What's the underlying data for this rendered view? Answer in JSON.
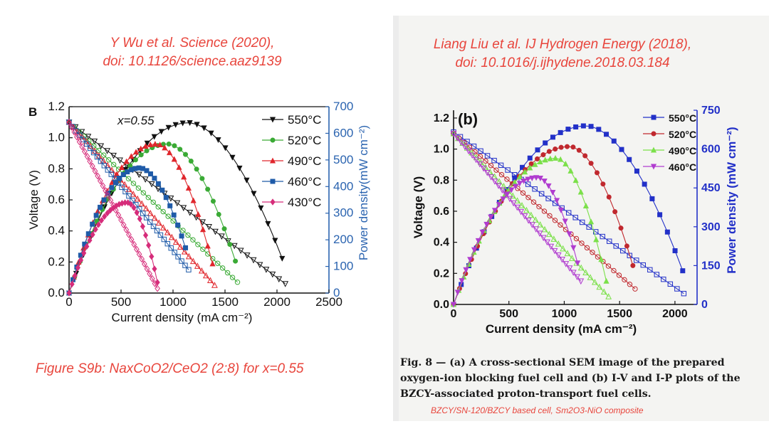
{
  "left": {
    "citation_line1": "Y Wu et al. Science (2020),",
    "citation_line2": "doi: 10.1126/science.aaz9139",
    "caption": "Figure S9b: NaxCoO2/CeO2 (2:8) for x=0.55"
  },
  "right": {
    "citation_line1": "Liang Liu et al. IJ Hydrogen Energy (2018),",
    "citation_line2": "doi: 10.1016/j.ijhydene.2018.03.184",
    "figure_caption_lines": [
      "Fig. 8 — (a) A cross-sectional SEM image of the prepared",
      "oxygen-ion blocking fuel cell and (b) I-V and I-P plots of the",
      "BZCY-associated proton-transport fuel cells."
    ],
    "sub_caption": "BZCY/SN-120/BZCY based cell, Sm2O3-NiO composite"
  },
  "chart_data": [
    {
      "type": "line",
      "panel_label": "B",
      "annotation": "x=0.55",
      "xlabel": "Current density (mA cm⁻²)",
      "ylabel": "Voltage (V)",
      "y2label": "Power density(mW cm⁻²)",
      "xlim": [
        0,
        2500
      ],
      "ylim": [
        0,
        1.2
      ],
      "y2lim": [
        0,
        700
      ],
      "xticks": [
        0,
        500,
        1000,
        1500,
        2000,
        2500
      ],
      "yticks": [
        0.0,
        0.2,
        0.4,
        0.6,
        0.8,
        1.0,
        1.2
      ],
      "y2ticks": [
        0,
        100,
        200,
        300,
        400,
        500,
        600,
        700
      ],
      "xtick_labels": [
        "0",
        "500",
        "1000",
        "1500",
        "2000",
        "2500"
      ],
      "ytick_labels": [
        "0.0",
        "0.2",
        "0.4",
        "0.6",
        "0.8",
        "1.0",
        "1.2"
      ],
      "y2tick_labels": [
        "0",
        "100",
        "200",
        "300",
        "400",
        "500",
        "600",
        "700"
      ],
      "legend_position": "top-right",
      "series": [
        {
          "name": "550°C",
          "color": "#111111",
          "marker": "triangle-down",
          "iv_x_max": 2080,
          "ocv": 1.1,
          "v_end": 0.06,
          "ip_x_max": 2050,
          "p_peak": 640,
          "p_peak_x": 1150,
          "p_end": 130
        },
        {
          "name": "520°C",
          "color": "#3aaa35",
          "marker": "circle",
          "iv_x_max": 1620,
          "ocv": 1.1,
          "v_end": 0.07,
          "ip_x_max": 1600,
          "p_peak": 560,
          "p_peak_x": 950,
          "p_end": 120
        },
        {
          "name": "490°C",
          "color": "#e0262c",
          "marker": "triangle-up",
          "iv_x_max": 1400,
          "ocv": 1.1,
          "v_end": 0.05,
          "ip_x_max": 1380,
          "p_peak": 560,
          "p_peak_x": 840,
          "p_end": 110
        },
        {
          "name": "460°C",
          "color": "#1f5ba8",
          "marker": "square",
          "iv_x_max": 1150,
          "ocv": 1.1,
          "v_end": 0.15,
          "ip_x_max": 1120,
          "p_peak": 470,
          "p_peak_x": 680,
          "p_end": 170
        },
        {
          "name": "430°C",
          "color": "#d62c7a",
          "marker": "diamond",
          "iv_x_max": 850,
          "ocv": 1.1,
          "v_end": 0.03,
          "ip_x_max": 850,
          "p_peak": 340,
          "p_peak_x": 560,
          "p_end": 40
        }
      ]
    },
    {
      "type": "line",
      "panel_label": "(b)",
      "xlabel": "Current density (mA cm⁻²)",
      "ylabel": "Voltage (V)",
      "y2label": "Power density (mW cm⁻²)",
      "xlim": [
        0,
        2200
      ],
      "ylim": [
        0,
        1.25
      ],
      "y2lim": [
        0,
        750
      ],
      "xticks": [
        0,
        500,
        1000,
        1500,
        2000
      ],
      "yticks": [
        0.0,
        0.2,
        0.4,
        0.6,
        0.8,
        1.0,
        1.2
      ],
      "y2ticks": [
        0,
        150,
        300,
        450,
        600,
        750
      ],
      "xtick_labels": [
        "0",
        "500",
        "1000",
        "1500",
        "2000"
      ],
      "ytick_labels": [
        "0.0",
        "0.2",
        "0.4",
        "0.6",
        "0.8",
        "1.0",
        "1.2"
      ],
      "y2tick_labels": [
        "0",
        "150",
        "300",
        "450",
        "600",
        "750"
      ],
      "legend_position": "top-right",
      "series": [
        {
          "name": "550°C",
          "color": "#2230c8",
          "marker": "square",
          "iv_x_max": 2080,
          "ocv": 1.11,
          "v_end": 0.07,
          "ip_x_max": 2070,
          "p_peak": 690,
          "p_peak_x": 1200,
          "p_end": 130
        },
        {
          "name": "520°C",
          "color": "#c0282e",
          "marker": "circle",
          "iv_x_max": 1640,
          "ocv": 1.1,
          "v_end": 0.1,
          "ip_x_max": 1620,
          "p_peak": 610,
          "p_peak_x": 1050,
          "p_end": 150
        },
        {
          "name": "490°C",
          "color": "#7be04a",
          "marker": "triangle-up",
          "iv_x_max": 1400,
          "ocv": 1.1,
          "v_end": 0.05,
          "ip_x_max": 1380,
          "p_peak": 565,
          "p_peak_x": 930,
          "p_end": 90
        },
        {
          "name": "460°C",
          "color": "#b03ccf",
          "marker": "triangle-down",
          "iv_x_max": 1150,
          "ocv": 1.1,
          "v_end": 0.15,
          "ip_x_max": 1120,
          "p_peak": 490,
          "p_peak_x": 760,
          "p_end": 160
        }
      ]
    }
  ]
}
